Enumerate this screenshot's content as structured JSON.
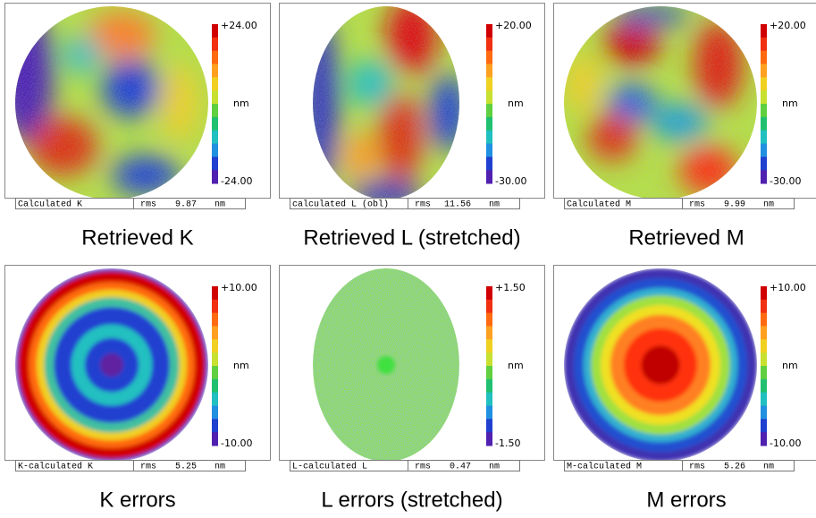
{
  "panels": [
    {
      "map_label": "Calculated K",
      "rms_label": "rms",
      "rms": 9.87,
      "unit": "nm",
      "scale_max": "+24.00",
      "scale_unit": "nm",
      "scale_min": "-24.00",
      "caption": "Retrieved K"
    },
    {
      "map_label": "calculated L (obl)",
      "rms_label": "rms",
      "rms": 11.56,
      "unit": "nm",
      "scale_max": "+20.00",
      "scale_unit": "nm",
      "scale_min": "-30.00",
      "caption": "Retrieved L (stretched)"
    },
    {
      "map_label": "Calculated M",
      "rms_label": "rms",
      "rms": 9.99,
      "unit": "nm",
      "scale_max": "+20.00",
      "scale_unit": "nm",
      "scale_min": "-30.00",
      "caption": "Retrieved M"
    },
    {
      "map_label": "K-calculated K",
      "rms_label": "rms",
      "rms": 5.25,
      "unit": "nm",
      "scale_max": "+10.00",
      "scale_unit": "nm",
      "scale_min": "-10.00",
      "caption": "K errors"
    },
    {
      "map_label": "L-calculated L",
      "rms_label": "rms",
      "rms": 0.47,
      "unit": "nm",
      "scale_max": "+1.50",
      "scale_unit": "nm",
      "scale_min": "-1.50",
      "caption": "L errors (stretched)"
    },
    {
      "map_label": "M-calculated M",
      "rms_label": "rms",
      "rms": 5.26,
      "unit": "nm",
      "scale_max": "+10.00",
      "scale_unit": "nm",
      "scale_min": "-10.00",
      "caption": "M errors"
    }
  ]
}
